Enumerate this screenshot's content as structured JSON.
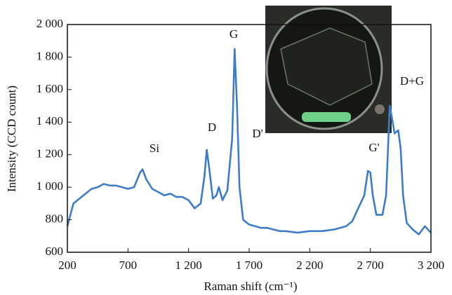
{
  "chart_data": {
    "type": "line",
    "x_label": "Raman shift (cm⁻¹)",
    "y_label": "Intensity (CCD count)",
    "annotations": [
      "Si",
      "D",
      "G",
      "D'",
      "G'",
      "D+G"
    ],
    "x": [
      200,
      250,
      300,
      350,
      400,
      450,
      500,
      550,
      600,
      650,
      700,
      750,
      800,
      820,
      850,
      900,
      950,
      1000,
      1050,
      1100,
      1150,
      1200,
      1250,
      1300,
      1330,
      1350,
      1370,
      1400,
      1430,
      1450,
      1480,
      1520,
      1560,
      1580,
      1600,
      1620,
      1650,
      1700,
      1750,
      1800,
      1850,
      1900,
      1950,
      2000,
      2100,
      2200,
      2300,
      2400,
      2500,
      2550,
      2600,
      2650,
      2680,
      2700,
      2720,
      2750,
      2800,
      2830,
      2860,
      2880,
      2900,
      2930,
      2950,
      2970,
      3000,
      3050,
      3100,
      3150,
      3200
    ],
    "series": [
      {
        "color": "#3d7cc6",
        "values": [
          760,
          900,
          930,
          960,
          990,
          1000,
          1020,
          1010,
          1010,
          1000,
          990,
          1000,
          1090,
          1110,
          1050,
          990,
          970,
          950,
          960,
          940,
          940,
          920,
          870,
          900,
          1060,
          1230,
          1120,
          930,
          950,
          1000,
          920,
          980,
          1300,
          1850,
          1500,
          1000,
          800,
          770,
          760,
          750,
          750,
          740,
          730,
          730,
          720,
          730,
          730,
          740,
          760,
          790,
          870,
          950,
          1100,
          1090,
          950,
          830,
          830,
          950,
          1500,
          1420,
          1330,
          1350,
          1240,
          950,
          780,
          740,
          710,
          760,
          720
        ]
      }
    ],
    "xlim": [
      200,
      3200
    ],
    "xticks": [
      200,
      700,
      {
        "value": 1200,
        "label": "1 200"
      },
      {
        "value": 1700,
        "label": "1 700"
      },
      {
        "value": 2200,
        "label": "2 200"
      },
      {
        "value": 2700,
        "label": "2 700"
      },
      {
        "value": 3200,
        "label": "3 200"
      }
    ],
    "ylim": [
      600,
      2000
    ],
    "yticks": [
      600,
      800,
      {
        "value": 1000,
        "label": "1 000"
      },
      {
        "value": 1200,
        "label": "1 200"
      },
      {
        "value": 1400,
        "label": "1 400"
      },
      {
        "value": 1600,
        "label": "1 600"
      },
      {
        "value": 1800,
        "label": "1 800"
      },
      {
        "value": 2000,
        "label": "2 000"
      }
    ]
  }
}
